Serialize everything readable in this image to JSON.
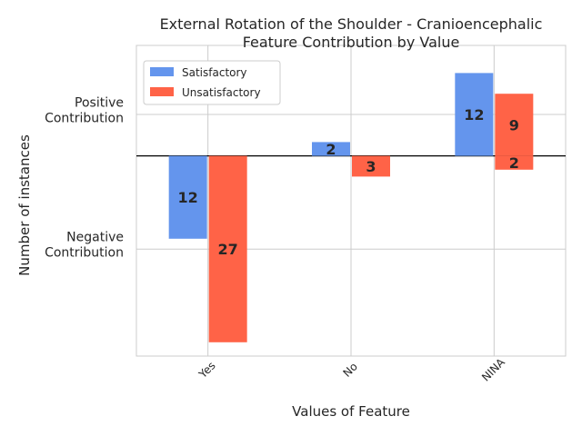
{
  "chart_data": {
    "type": "bar",
    "title": [
      "External Rotation of the Shoulder - Cranioencephalic",
      "Feature Contribution by Value"
    ],
    "xlabel": "Values of Feature",
    "ylabel": "Number of instances",
    "categories": [
      "Yes",
      "No",
      "NINA"
    ],
    "y_tick_labels": [
      {
        "lines": [
          "Positive",
          "Contribution"
        ],
        "value": 6
      },
      {
        "lines": [
          "Negative",
          "Contribution"
        ],
        "value": -13.5
      }
    ],
    "ylim": [
      -29,
      16
    ],
    "series": [
      {
        "name": "Satisfactory",
        "color": "#6495ED",
        "values": [
          -12,
          2,
          12
        ],
        "labels": [
          "12",
          "2",
          "12"
        ]
      },
      {
        "name": "Unsatisfactory",
        "color": "#FF6347",
        "values": [
          -27,
          -3,
          9
        ],
        "labels": [
          "27",
          "3",
          "9"
        ],
        "extra": {
          "NINA_negative": -2,
          "NINA_negative_label": "2"
        }
      }
    ],
    "legend": {
      "position": "top-left"
    },
    "grid": true
  }
}
